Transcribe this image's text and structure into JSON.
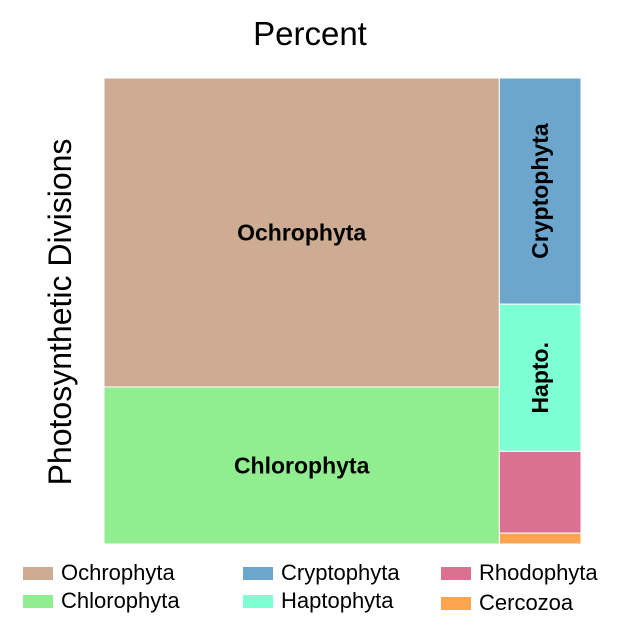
{
  "chart_data": {
    "type": "treemap",
    "title": "Percent",
    "ylabel": "Photosynthetic Divisions",
    "legend_position": "bottom",
    "series": [
      {
        "name": "Ochrophyta",
        "label": "Ochrophyta",
        "value": 54.9,
        "color": "#CDAC93"
      },
      {
        "name": "Chlorophyta",
        "label": "Chlorophyta",
        "value": 27.9,
        "color": "#90EE90"
      },
      {
        "name": "Cryptophyta",
        "label": "Cryptophyta",
        "value": 8.3,
        "color": "#6CA6CD"
      },
      {
        "name": "Haptophyta",
        "label": "Hapto.",
        "value": 5.4,
        "color": "#7FFFD4"
      },
      {
        "name": "Rhodophyta",
        "label": "",
        "value": 3.0,
        "color": "#DB7093"
      },
      {
        "name": "Cercozoa",
        "label": "",
        "value": 0.4,
        "color": "#FFA54F"
      }
    ]
  }
}
